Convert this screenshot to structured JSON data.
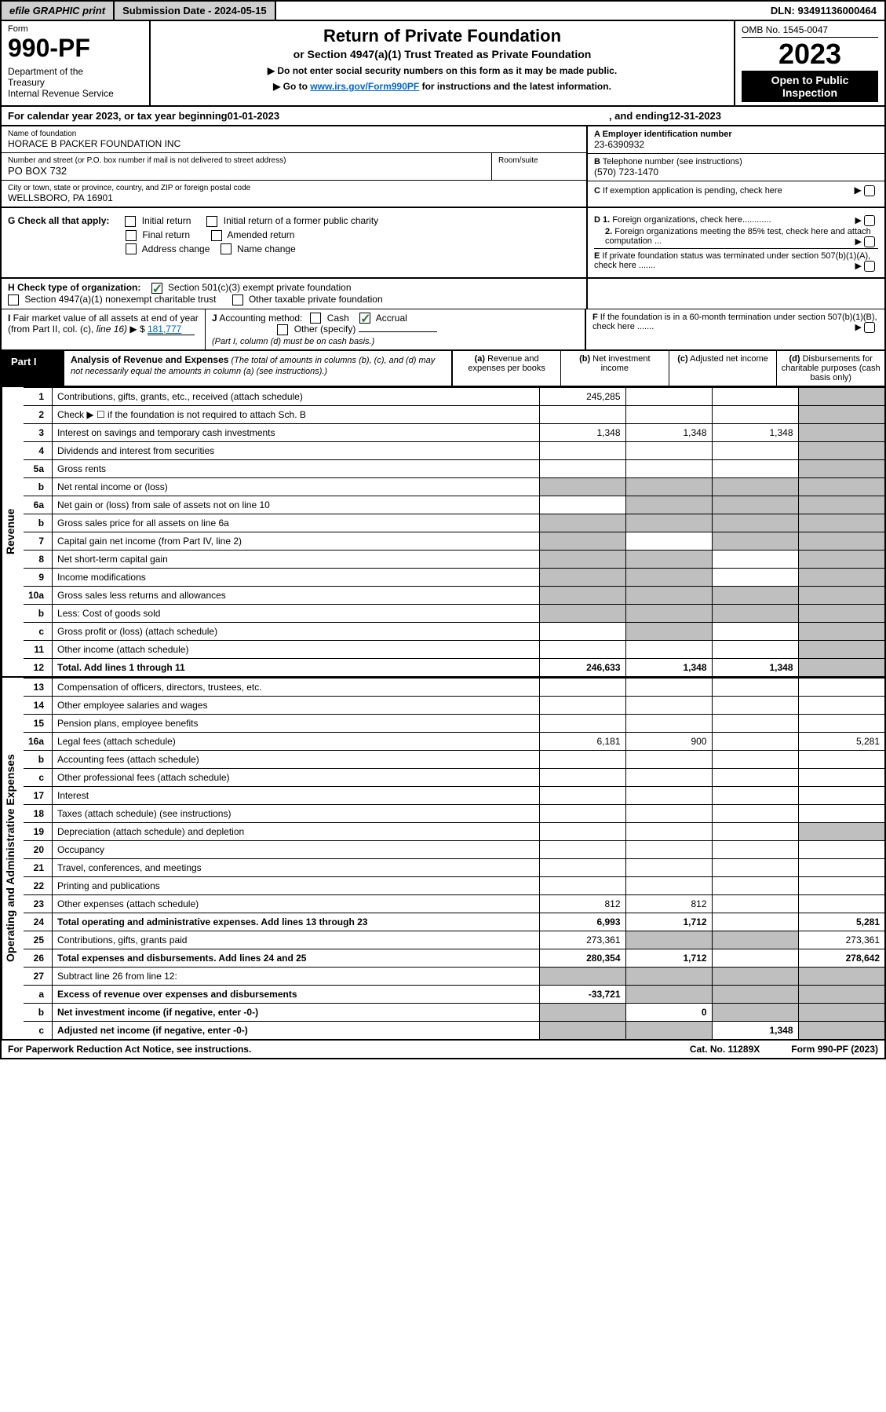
{
  "topbar": {
    "efile": "efile GRAPHIC print",
    "submission": "Submission Date - 2024-05-15",
    "dln": "DLN: 93491136000464"
  },
  "header": {
    "form_label": "Form",
    "form_number": "990-PF",
    "dept": "Department of the Treasury\nInternal Revenue Service",
    "title": "Return of Private Foundation",
    "subtitle": "or Section 4947(a)(1) Trust Treated as Private Foundation",
    "note1": "▶ Do not enter social security numbers on this form as it may be made public.",
    "note2_prefix": "▶ Go to ",
    "note2_link": "www.irs.gov/Form990PF",
    "note2_suffix": " for instructions and the latest information.",
    "omb": "OMB No. 1545-0047",
    "year": "2023",
    "open_public": "Open to Public Inspection"
  },
  "cal_year": {
    "prefix": "For calendar year 2023, or tax year beginning ",
    "begin": "01-01-2023",
    "mid": " , and ending ",
    "end": "12-31-2023"
  },
  "entity": {
    "name_label": "Name of foundation",
    "name": "HORACE B PACKER FOUNDATION INC",
    "addr_label": "Number and street (or P.O. box number if mail is not delivered to street address)",
    "addr": "PO BOX 732",
    "room_label": "Room/suite",
    "city_label": "City or town, state or province, country, and ZIP or foreign postal code",
    "city": "WELLSBORO, PA  16901",
    "a_label": "A Employer identification number",
    "a_val": "23-6390932",
    "b_label": "B Telephone number (see instructions)",
    "b_val": "(570) 723-1470",
    "c_label": "C If exemption application is pending, check here"
  },
  "sectionG": {
    "label": "G Check all that apply:",
    "opts": [
      "Initial return",
      "Final return",
      "Address change",
      "Initial return of a former public charity",
      "Amended return",
      "Name change"
    ]
  },
  "sectionD": {
    "d1": "D 1. Foreign organizations, check here............",
    "d2": "2. Foreign organizations meeting the 85% test, check here and attach computation ...",
    "e": "E  If private foundation status was terminated under section 507(b)(1)(A), check here .......",
    "f": "F  If the foundation is in a 60-month termination under section 507(b)(1)(B), check here ......."
  },
  "sectionH": {
    "label": "H Check type of organization:",
    "opt1": "Section 501(c)(3) exempt private foundation",
    "opt2": "Section 4947(a)(1) nonexempt charitable trust",
    "opt3": "Other taxable private foundation"
  },
  "sectionI": {
    "label": "I Fair market value of all assets at end of year (from Part II, col. (c), line 16)",
    "arrow": "▶ $",
    "val": "181,777"
  },
  "sectionJ": {
    "label": "J Accounting method:",
    "cash": "Cash",
    "accrual": "Accrual",
    "other": "Other (specify)",
    "note": "(Part I, column (d) must be on cash basis.)"
  },
  "part1": {
    "label": "Part I",
    "title": "Analysis of Revenue and Expenses",
    "title_note": " (The total of amounts in columns (b), (c), and (d) may not necessarily equal the amounts in column (a) (see instructions).)",
    "col_a": "(a) Revenue and expenses per books",
    "col_b": "(b) Net investment income",
    "col_c": "(c) Adjusted net income",
    "col_d": "(d) Disbursements for charitable purposes (cash basis only)"
  },
  "side_labels": {
    "revenue": "Revenue",
    "expenses": "Operating and Administrative Expenses"
  },
  "rows": [
    {
      "n": "1",
      "desc": "Contributions, gifts, grants, etc., received (attach schedule)",
      "a": "245,285",
      "b": "",
      "c": "",
      "d_grey": true
    },
    {
      "n": "2",
      "desc": "Check ▶ ☐ if the foundation is not required to attach Sch. B",
      "nodata": true
    },
    {
      "n": "3",
      "desc": "Interest on savings and temporary cash investments",
      "a": "1,348",
      "b": "1,348",
      "c": "1,348",
      "d_grey": true
    },
    {
      "n": "4",
      "desc": "Dividends and interest from securities",
      "a": "",
      "b": "",
      "c": "",
      "d_grey": true
    },
    {
      "n": "5a",
      "desc": "Gross rents",
      "a": "",
      "b": "",
      "c": "",
      "d_grey": true
    },
    {
      "n": "b",
      "desc": "Net rental income or (loss)",
      "half": true,
      "d_grey": true,
      "bc_grey": true
    },
    {
      "n": "6a",
      "desc": "Net gain or (loss) from sale of assets not on line 10",
      "a": "",
      "b_grey": true,
      "c_grey": true,
      "d_grey": true
    },
    {
      "n": "b",
      "desc": "Gross sales price for all assets on line 6a",
      "half": true,
      "all_grey": true
    },
    {
      "n": "7",
      "desc": "Capital gain net income (from Part IV, line 2)",
      "a_grey": true,
      "b": "",
      "c_grey": true,
      "d_grey": true
    },
    {
      "n": "8",
      "desc": "Net short-term capital gain",
      "a_grey": true,
      "b_grey": true,
      "c": "",
      "d_grey": true
    },
    {
      "n": "9",
      "desc": "Income modifications",
      "a_grey": true,
      "b_grey": true,
      "c": "",
      "d_grey": true
    },
    {
      "n": "10a",
      "desc": "Gross sales less returns and allowances",
      "half": true,
      "all_grey": true
    },
    {
      "n": "b",
      "desc": "Less: Cost of goods sold",
      "half": true,
      "all_grey": true
    },
    {
      "n": "c",
      "desc": "Gross profit or (loss) (attach schedule)",
      "a": "",
      "b_grey": true,
      "c": "",
      "d_grey": true
    },
    {
      "n": "11",
      "desc": "Other income (attach schedule)",
      "a": "",
      "b": "",
      "c": "",
      "d_grey": true
    },
    {
      "n": "12",
      "desc": "Total. Add lines 1 through 11",
      "bold": true,
      "a": "246,633",
      "b": "1,348",
      "c": "1,348",
      "d_grey": true
    }
  ],
  "exp_rows": [
    {
      "n": "13",
      "desc": "Compensation of officers, directors, trustees, etc.",
      "a": "",
      "b": "",
      "c": "",
      "d": ""
    },
    {
      "n": "14",
      "desc": "Other employee salaries and wages",
      "a": "",
      "b": "",
      "c": "",
      "d": ""
    },
    {
      "n": "15",
      "desc": "Pension plans, employee benefits",
      "a": "",
      "b": "",
      "c": "",
      "d": ""
    },
    {
      "n": "16a",
      "desc": "Legal fees (attach schedule)",
      "a": "6,181",
      "b": "900",
      "c": "",
      "d": "5,281"
    },
    {
      "n": "b",
      "desc": "Accounting fees (attach schedule)",
      "a": "",
      "b": "",
      "c": "",
      "d": ""
    },
    {
      "n": "c",
      "desc": "Other professional fees (attach schedule)",
      "a": "",
      "b": "",
      "c": "",
      "d": ""
    },
    {
      "n": "17",
      "desc": "Interest",
      "a": "",
      "b": "",
      "c": "",
      "d": ""
    },
    {
      "n": "18",
      "desc": "Taxes (attach schedule) (see instructions)",
      "a": "",
      "b": "",
      "c": "",
      "d": ""
    },
    {
      "n": "19",
      "desc": "Depreciation (attach schedule) and depletion",
      "a": "",
      "b": "",
      "c": "",
      "d_grey": true
    },
    {
      "n": "20",
      "desc": "Occupancy",
      "a": "",
      "b": "",
      "c": "",
      "d": ""
    },
    {
      "n": "21",
      "desc": "Travel, conferences, and meetings",
      "a": "",
      "b": "",
      "c": "",
      "d": ""
    },
    {
      "n": "22",
      "desc": "Printing and publications",
      "a": "",
      "b": "",
      "c": "",
      "d": ""
    },
    {
      "n": "23",
      "desc": "Other expenses (attach schedule)",
      "a": "812",
      "b": "812",
      "c": "",
      "d": ""
    },
    {
      "n": "24",
      "desc": "Total operating and administrative expenses. Add lines 13 through 23",
      "bold": true,
      "a": "6,993",
      "b": "1,712",
      "c": "",
      "d": "5,281"
    },
    {
      "n": "25",
      "desc": "Contributions, gifts, grants paid",
      "a": "273,361",
      "b_grey": true,
      "c_grey": true,
      "d": "273,361"
    },
    {
      "n": "26",
      "desc": "Total expenses and disbursements. Add lines 24 and 25",
      "bold": true,
      "a": "280,354",
      "b": "1,712",
      "c": "",
      "d": "278,642"
    },
    {
      "n": "27",
      "desc": "Subtract line 26 from line 12:",
      "nodata_grey": true
    },
    {
      "n": "a",
      "desc": "Excess of revenue over expenses and disbursements",
      "bold": true,
      "a": "-33,721",
      "b_grey": true,
      "c_grey": true,
      "d_grey": true
    },
    {
      "n": "b",
      "desc": "Net investment income (if negative, enter -0-)",
      "bold": true,
      "a_grey": true,
      "b": "0",
      "c_grey": true,
      "d_grey": true
    },
    {
      "n": "c",
      "desc": "Adjusted net income (if negative, enter -0-)",
      "bold": true,
      "a_grey": true,
      "b_grey": true,
      "c": "1,348",
      "d_grey": true
    }
  ],
  "footer": {
    "left": "For Paperwork Reduction Act Notice, see instructions.",
    "mid": "Cat. No. 11289X",
    "right": "Form 990-PF (2023)"
  },
  "colors": {
    "grey": "#bfbfbf",
    "button_grey": "#cfcfcf",
    "link": "#0066cc",
    "check_green": "#2a7a3a"
  }
}
